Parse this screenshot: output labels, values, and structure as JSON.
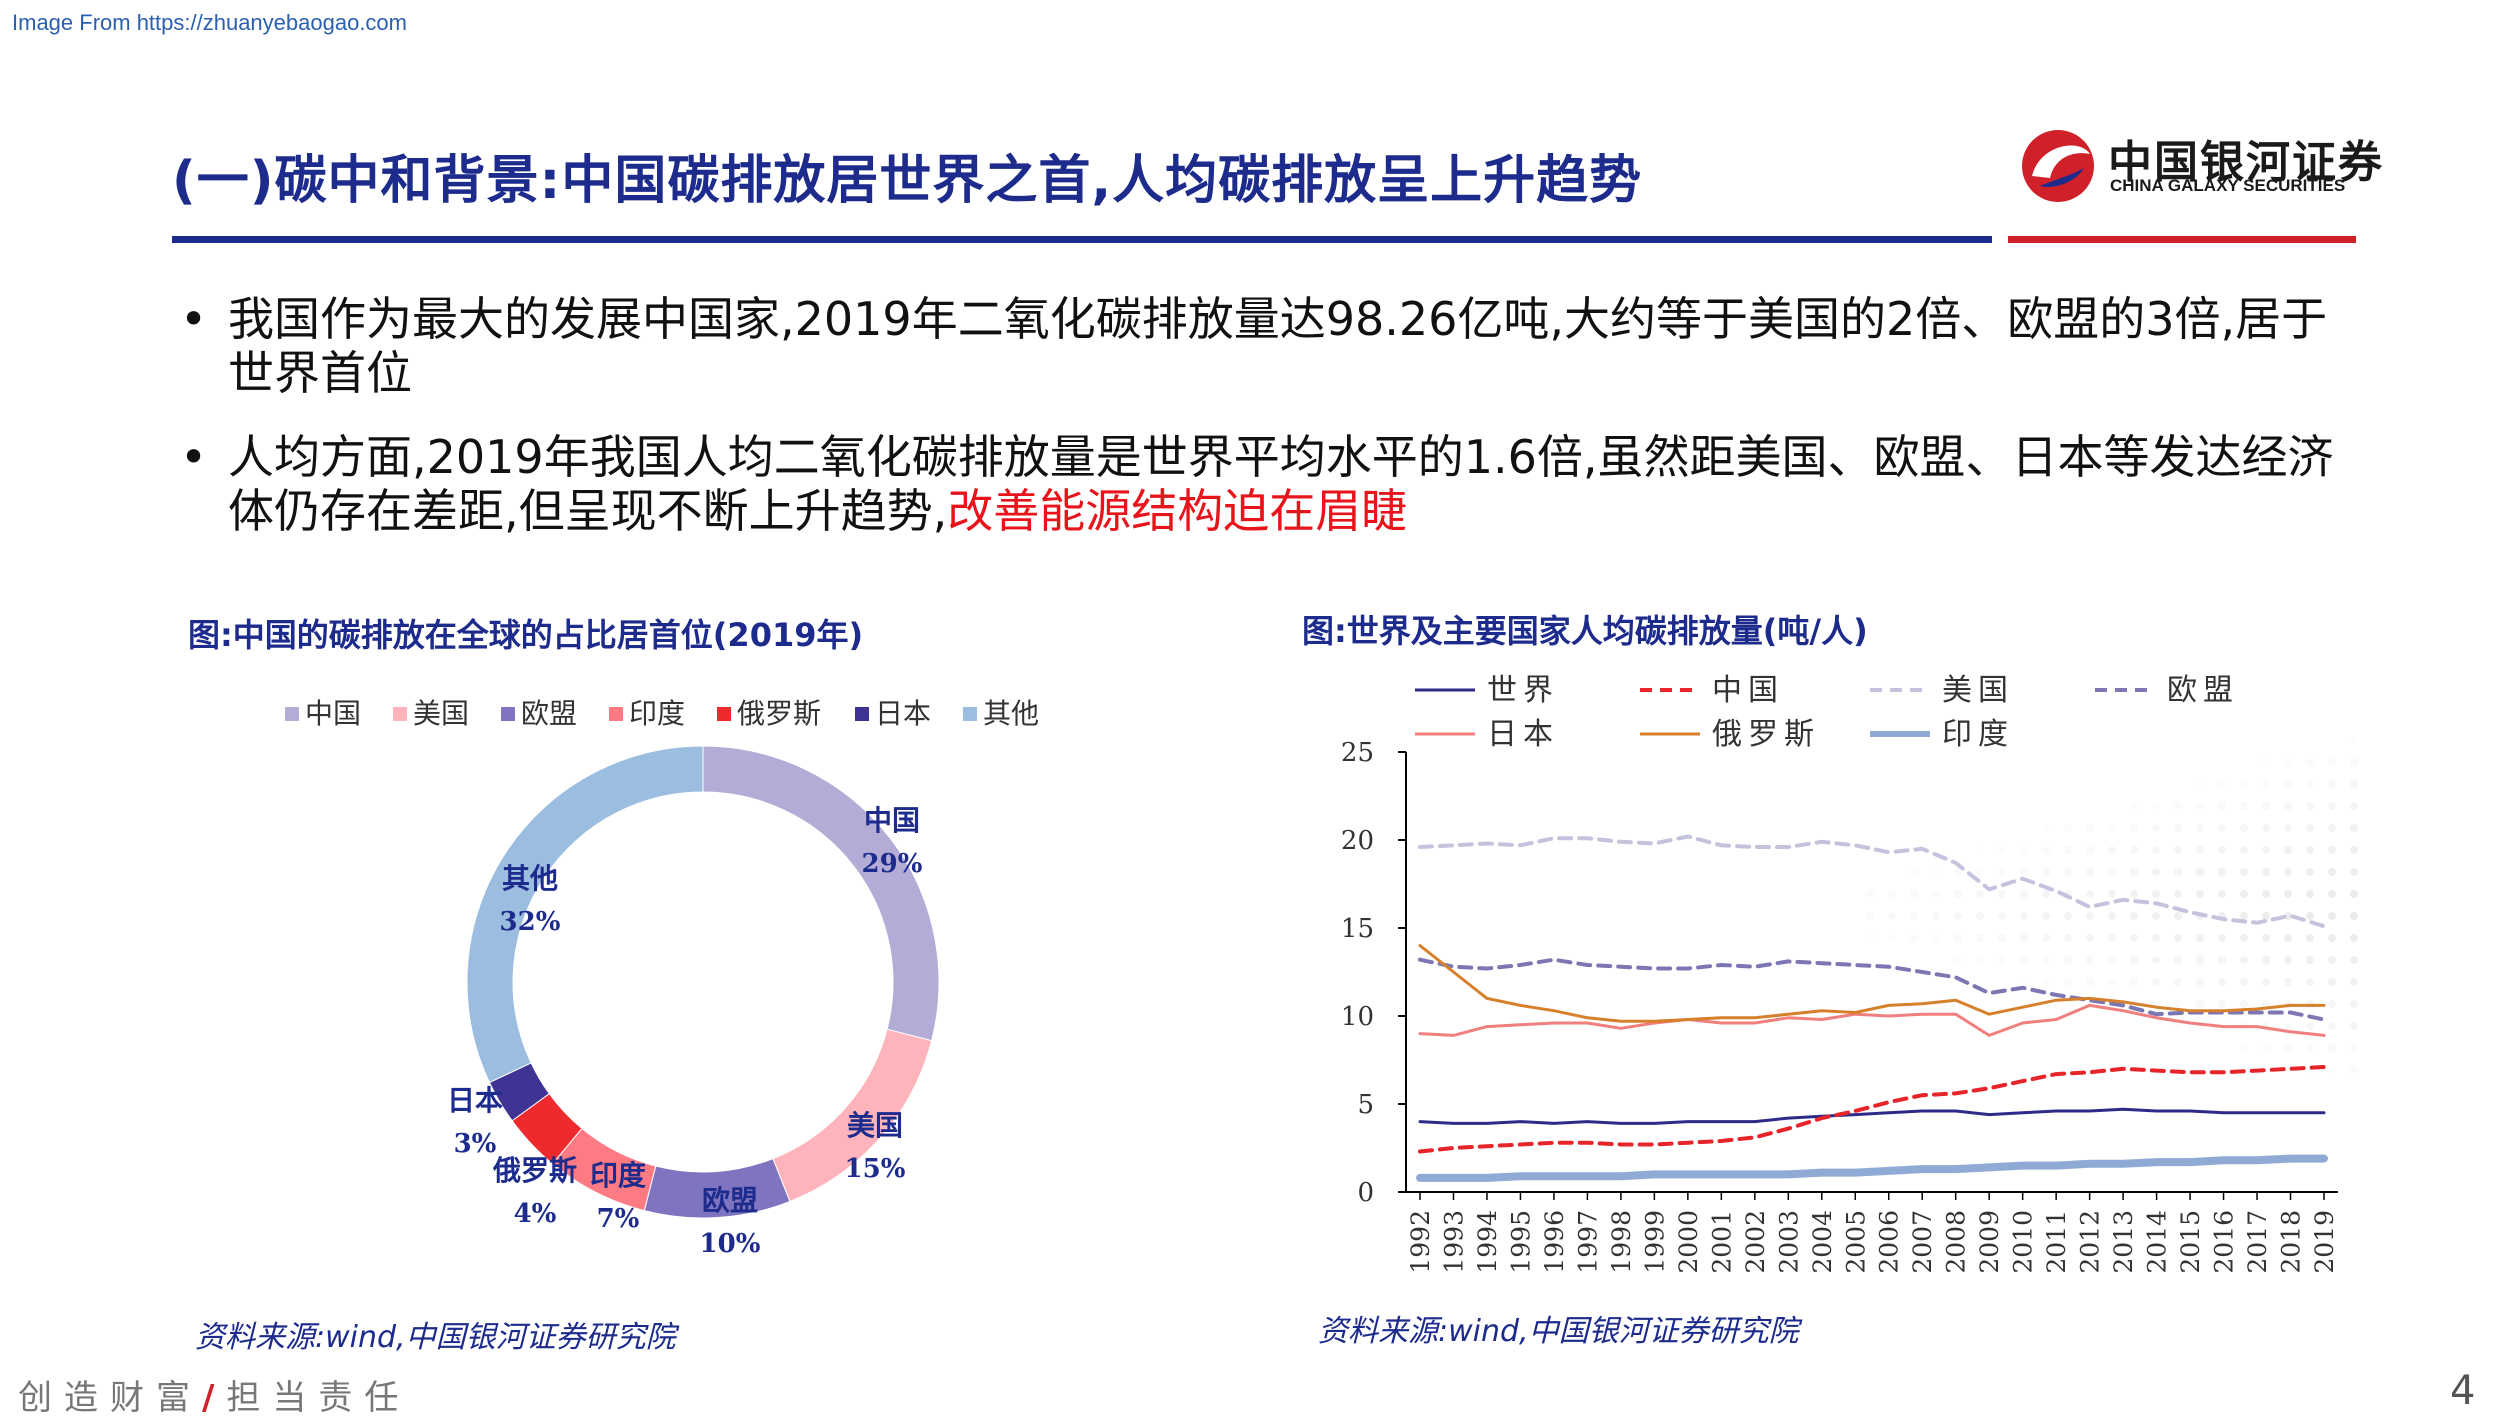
{
  "source_url": "Image From https://zhuanyebaogao.com",
  "title": "(一)碳中和背景:中国碳排放居世界之首,人均碳排放呈上升趋势",
  "logo": {
    "cn": "中国银河证券",
    "en": "CHINA GALAXY SECURITIES"
  },
  "bullets": [
    {
      "text": "我国作为最大的发展中国家,2019年二氧化碳排放量达98.26亿吨,大约等于美国的2倍、欧盟的3倍,居于世界首位"
    },
    {
      "text": "人均方面,2019年我国人均二氧化碳排放量是世界平均水平的1.6倍,虽然距美国、欧盟、日本等发达经济体仍存在差距,但呈现不断上升趋势,",
      "highlight": "改善能源结构迫在眉睫"
    }
  ],
  "bullet_symbol": "•",
  "left_chart": {
    "caption": "图:中国的碳排放在全球的占比居首位(2019年)",
    "source": "资料来源:wind,中国银河证券研究院"
  },
  "right_chart": {
    "caption": "图:世界及主要国家人均碳排放量(吨/人)",
    "source": "资料来源:wind,中国银河证券研究院"
  },
  "footer": {
    "left_a": "创造财富",
    "slash": "/",
    "left_b": "担当责任",
    "page": "4"
  },
  "chart_data": [
    {
      "type": "pie",
      "title": "中国的碳排放在全球的占比居首位(2019年)",
      "categories": [
        "中国",
        "美国",
        "欧盟",
        "印度",
        "俄罗斯",
        "日本",
        "其他"
      ],
      "values": [
        29,
        15,
        10,
        7,
        4,
        3,
        32
      ],
      "labels": [
        "29%",
        "15%",
        "10%",
        "7%",
        "4%",
        "3%",
        "32%"
      ],
      "colors": [
        "#b3acd7",
        "#ffb3ba",
        "#7f74bf",
        "#ff7b84",
        "#ef2a2e",
        "#3f3493",
        "#9bbde0"
      ],
      "legend_position": "top"
    },
    {
      "type": "line",
      "title": "世界及主要国家人均碳排放量(吨/人)",
      "x": [
        "1992",
        "1993",
        "1994",
        "1995",
        "1996",
        "1997",
        "1998",
        "1999",
        "2000",
        "2001",
        "2002",
        "2003",
        "2004",
        "2005",
        "2006",
        "2007",
        "2008",
        "2009",
        "2010",
        "2011",
        "2012",
        "2013",
        "2014",
        "2015",
        "2016",
        "2017",
        "2018",
        "2019"
      ],
      "ylim": [
        0,
        25
      ],
      "yticks": [
        "0",
        "5",
        "10",
        "15",
        "20",
        "25"
      ],
      "legend_position": "top",
      "series": [
        {
          "name": "世界",
          "color": "#2e2a8a",
          "dash": "solid",
          "width": 3,
          "values": [
            4.0,
            3.9,
            3.9,
            4.0,
            3.9,
            4.0,
            3.9,
            3.9,
            4.0,
            4.0,
            4.0,
            4.2,
            4.3,
            4.4,
            4.5,
            4.6,
            4.6,
            4.4,
            4.5,
            4.6,
            4.6,
            4.7,
            4.6,
            4.6,
            4.5,
            4.5,
            4.5,
            4.5
          ]
        },
        {
          "name": "中国",
          "color": "#e8242b",
          "dash": "dash",
          "width": 4,
          "values": [
            2.3,
            2.5,
            2.6,
            2.7,
            2.8,
            2.8,
            2.7,
            2.7,
            2.8,
            2.9,
            3.1,
            3.6,
            4.2,
            4.6,
            5.1,
            5.5,
            5.6,
            5.9,
            6.3,
            6.7,
            6.8,
            7.0,
            6.9,
            6.8,
            6.8,
            6.9,
            7.0,
            7.1
          ]
        },
        {
          "name": "美国",
          "color": "#c3c3de",
          "dash": "dash",
          "width": 4,
          "values": [
            19.6,
            19.7,
            19.8,
            19.7,
            20.1,
            20.1,
            19.9,
            19.8,
            20.2,
            19.7,
            19.6,
            19.6,
            19.9,
            19.7,
            19.3,
            19.5,
            18.7,
            17.2,
            17.8,
            17.1,
            16.2,
            16.6,
            16.4,
            15.9,
            15.5,
            15.3,
            15.7,
            15.1
          ]
        },
        {
          "name": "欧盟",
          "color": "#7c77b3",
          "dash": "dash",
          "width": 4,
          "values": [
            13.2,
            12.8,
            12.7,
            12.9,
            13.2,
            12.9,
            12.8,
            12.7,
            12.7,
            12.9,
            12.8,
            13.1,
            13.0,
            12.9,
            12.8,
            12.5,
            12.2,
            11.3,
            11.6,
            11.2,
            10.9,
            10.6,
            10.1,
            10.2,
            10.2,
            10.2,
            10.2,
            9.8
          ]
        },
        {
          "name": "日本",
          "color": "#f07f7d",
          "dash": "solid",
          "width": 3,
          "values": [
            9.0,
            8.9,
            9.4,
            9.5,
            9.6,
            9.6,
            9.3,
            9.6,
            9.8,
            9.6,
            9.6,
            9.9,
            9.8,
            10.1,
            10.0,
            10.1,
            10.1,
            8.9,
            9.6,
            9.8,
            10.6,
            10.3,
            9.9,
            9.6,
            9.4,
            9.4,
            9.1,
            8.9
          ]
        },
        {
          "name": "俄罗斯",
          "color": "#d7802c",
          "dash": "solid",
          "width": 3,
          "values": [
            14.0,
            12.5,
            11.0,
            10.6,
            10.3,
            9.9,
            9.7,
            9.7,
            9.8,
            9.9,
            9.9,
            10.1,
            10.3,
            10.2,
            10.6,
            10.7,
            10.9,
            10.1,
            10.5,
            10.9,
            11.0,
            10.8,
            10.5,
            10.3,
            10.3,
            10.4,
            10.6,
            10.6
          ]
        },
        {
          "name": "印度",
          "color": "#8faad4",
          "dash": "solid",
          "width": 8,
          "values": [
            0.8,
            0.8,
            0.8,
            0.9,
            0.9,
            0.9,
            0.9,
            1.0,
            1.0,
            1.0,
            1.0,
            1.0,
            1.1,
            1.1,
            1.2,
            1.3,
            1.3,
            1.4,
            1.5,
            1.5,
            1.6,
            1.6,
            1.7,
            1.7,
            1.8,
            1.8,
            1.9,
            1.9
          ]
        }
      ]
    }
  ]
}
